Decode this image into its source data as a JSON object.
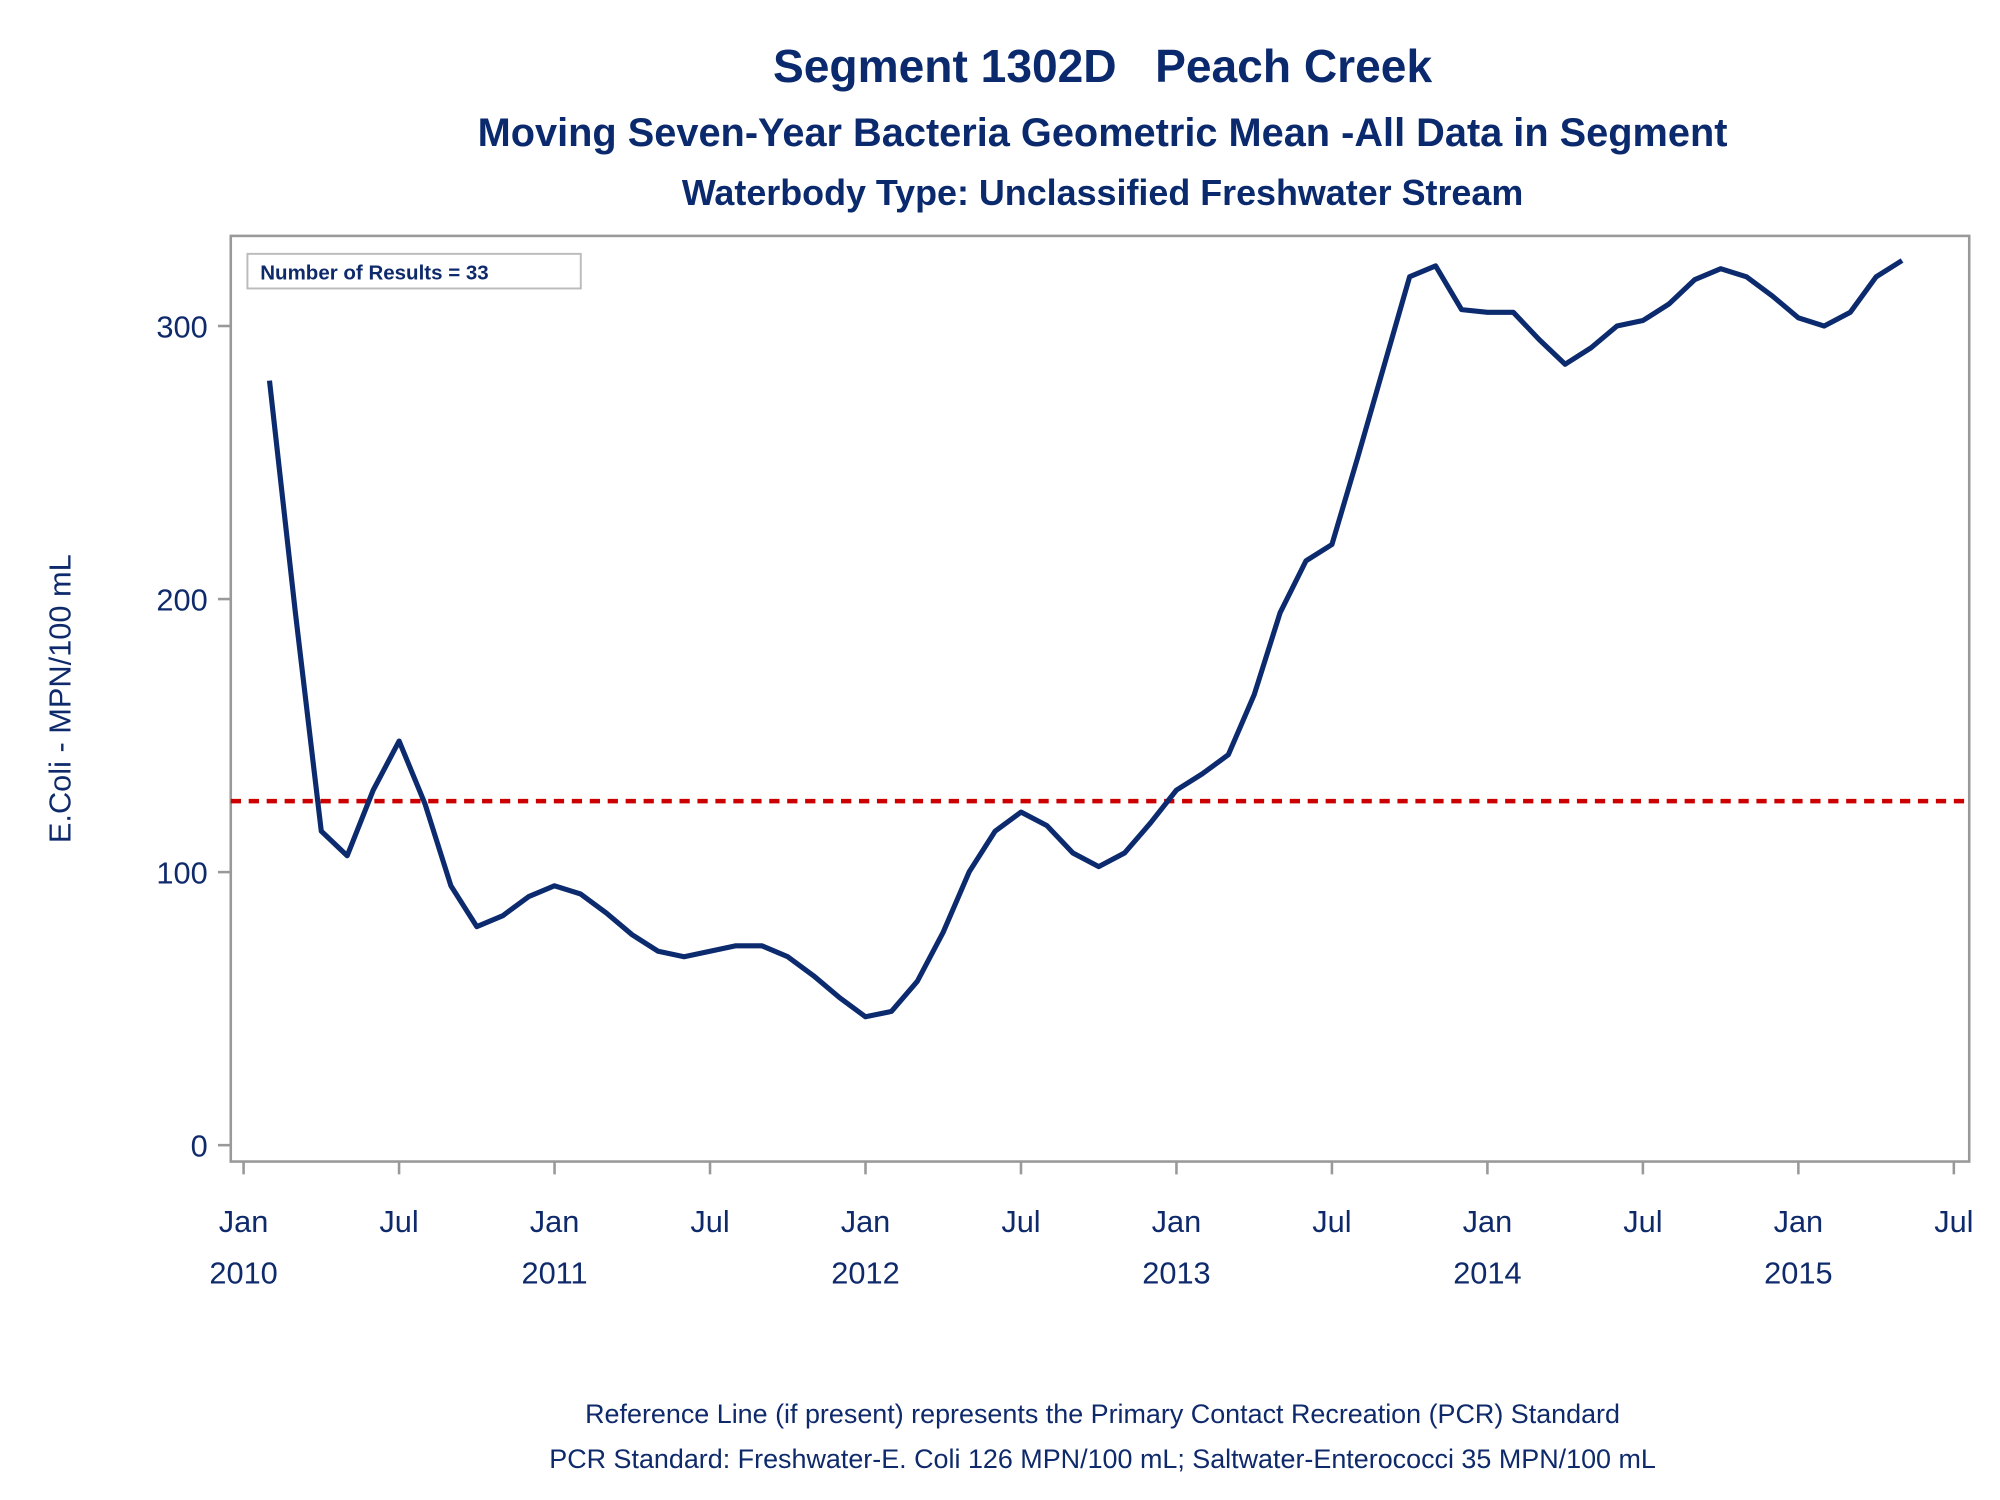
{
  "chart_data": {
    "type": "line",
    "title": "Segment 1302D   Peach Creek",
    "subtitle": "Moving Seven-Year Bacteria Geometric Mean -All Data in Segment",
    "subtitle2": "Waterbody Type: Unclassified Freshwater Stream",
    "y_label": "E.Coli - MPN/100 mL",
    "annotation": "Number of Results = 33",
    "footnotes": [
      "Reference Line (if present) represents the Primary Contact Recreation (PCR) Standard",
      "PCR Standard: Freshwater-E. Coli 126 MPN/100 mL; Saltwater-Enterococci 35 MPN/100 mL"
    ],
    "x": [
      "2010-02",
      "2010-03",
      "2010-04",
      "2010-05",
      "2010-06",
      "2010-07",
      "2010-08",
      "2010-09",
      "2010-10",
      "2010-11",
      "2010-12",
      "2011-01",
      "2011-02",
      "2011-03",
      "2011-04",
      "2011-05",
      "2011-06",
      "2011-07",
      "2011-08",
      "2011-09",
      "2011-10",
      "2011-11",
      "2011-12",
      "2012-01",
      "2012-02",
      "2012-03",
      "2012-04",
      "2012-05",
      "2012-06",
      "2012-07",
      "2012-08",
      "2012-09",
      "2012-10",
      "2012-11",
      "2012-12",
      "2013-01",
      "2013-02",
      "2013-03",
      "2013-04",
      "2013-05",
      "2013-06",
      "2013-07",
      "2013-08",
      "2013-09",
      "2013-10",
      "2013-11",
      "2013-12",
      "2014-01",
      "2014-02",
      "2014-03",
      "2014-04",
      "2014-05",
      "2014-06",
      "2014-07",
      "2014-08",
      "2014-09",
      "2014-10",
      "2014-11",
      "2014-12",
      "2015-01",
      "2015-02",
      "2015-03",
      "2015-04",
      "2015-05"
    ],
    "series": [
      {
        "name": "Geometric Mean",
        "color": "#0c2a6e",
        "values": [
          280,
          195,
          115,
          106,
          130,
          148,
          125,
          95,
          80,
          84,
          91,
          95,
          92,
          85,
          77,
          71,
          69,
          71,
          73,
          73,
          69,
          62,
          54,
          47,
          49,
          60,
          78,
          100,
          115,
          122,
          117,
          107,
          102,
          107,
          118,
          130,
          136,
          143,
          165,
          195,
          214,
          220,
          252,
          285,
          318,
          322,
          306,
          305,
          305,
          295,
          286,
          292,
          300,
          302,
          308,
          317,
          321,
          318,
          311,
          303,
          300,
          305,
          318,
          324
        ]
      }
    ],
    "reference_line": {
      "value": 126,
      "color": "#cc0000"
    },
    "xlim": [
      "2010-01",
      "2015-07"
    ],
    "xticks": [
      {
        "value": "2010-01",
        "label": "Jan",
        "year": "2010"
      },
      {
        "value": "2010-07",
        "label": "Jul"
      },
      {
        "value": "2011-01",
        "label": "Jan",
        "year": "2011"
      },
      {
        "value": "2011-07",
        "label": "Jul"
      },
      {
        "value": "2012-01",
        "label": "Jan",
        "year": "2012"
      },
      {
        "value": "2012-07",
        "label": "Jul"
      },
      {
        "value": "2013-01",
        "label": "Jan",
        "year": "2013"
      },
      {
        "value": "2013-07",
        "label": "Jul"
      },
      {
        "value": "2014-01",
        "label": "Jan",
        "year": "2014"
      },
      {
        "value": "2014-07",
        "label": "Jul"
      },
      {
        "value": "2015-01",
        "label": "Jan",
        "year": "2015"
      },
      {
        "value": "2015-07",
        "label": "Jul"
      }
    ],
    "ylim": [
      -6,
      333
    ],
    "yticks": [
      0,
      100,
      200,
      300
    ],
    "grid": false
  }
}
